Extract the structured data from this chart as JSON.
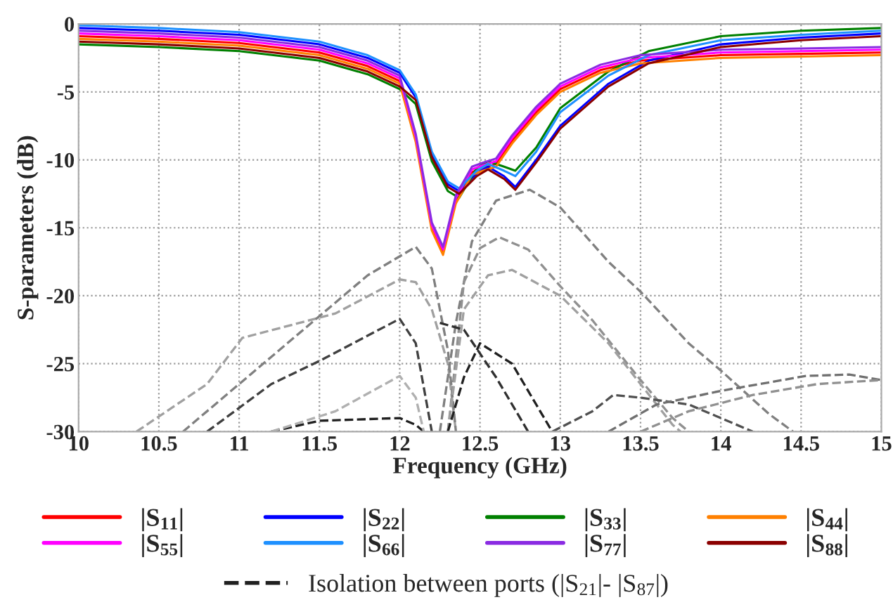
{
  "chart_data": {
    "type": "line",
    "xlabel": "Frequency (GHz)",
    "ylabel": "S-parameters (dB)",
    "xlim": [
      10,
      15
    ],
    "ylim": [
      -30,
      0
    ],
    "xticks": [
      10,
      10.5,
      11,
      11.5,
      12,
      12.5,
      13,
      13.5,
      14,
      14.5,
      15
    ],
    "yticks": [
      0,
      -5,
      -10,
      -15,
      -20,
      -25,
      -30
    ],
    "grid": true,
    "legend": "bottom",
    "line_style": "solid",
    "series": [
      {
        "name": "|S$_{11}$|",
        "color": "#ff0000",
        "x": [
          10,
          10.5,
          11,
          11.5,
          11.8,
          12.0,
          12.1,
          12.2,
          12.27,
          12.35,
          12.45,
          12.52,
          12.6,
          12.7,
          12.85,
          13.0,
          13.25,
          13.5,
          14.0,
          14.5,
          15.0
        ],
        "values": [
          -0.9,
          -1.1,
          -1.4,
          -2.1,
          -3.1,
          -4.2,
          -8.5,
          -15.0,
          -16.8,
          -13.0,
          -10.9,
          -10.6,
          -10.3,
          -8.6,
          -6.5,
          -4.8,
          -3.4,
          -2.7,
          -2.3,
          -2.2,
          -2.1
        ]
      },
      {
        "name": "|S$_{22}$|",
        "color": "#0000ff",
        "x": [
          10,
          10.5,
          11,
          11.5,
          11.8,
          12.0,
          12.1,
          12.2,
          12.3,
          12.37,
          12.48,
          12.55,
          12.65,
          12.72,
          12.85,
          13.0,
          13.3,
          13.55,
          14.0,
          14.5,
          15.0
        ],
        "values": [
          -0.3,
          -0.5,
          -0.8,
          -1.5,
          -2.5,
          -3.6,
          -5.4,
          -9.6,
          -11.8,
          -12.3,
          -11.0,
          -10.5,
          -11.2,
          -12.0,
          -10.0,
          -7.5,
          -4.4,
          -2.7,
          -1.5,
          -1.0,
          -0.7
        ]
      },
      {
        "name": "|S$_{33}$|",
        "color": "#008000",
        "x": [
          10,
          10.5,
          11,
          11.5,
          11.8,
          12.0,
          12.1,
          12.2,
          12.3,
          12.37,
          12.48,
          12.55,
          12.65,
          12.72,
          12.85,
          13.0,
          13.3,
          13.55,
          14.0,
          14.5,
          15.0
        ],
        "values": [
          -1.5,
          -1.7,
          -2.0,
          -2.7,
          -3.7,
          -4.8,
          -5.9,
          -10.1,
          -12.3,
          -12.8,
          -10.6,
          -10.1,
          -10.5,
          -10.8,
          -9.1,
          -6.2,
          -3.5,
          -2.0,
          -0.9,
          -0.5,
          -0.3
        ]
      },
      {
        "name": "|S$_{44}$|",
        "color": "#ff8000",
        "x": [
          10,
          10.5,
          11,
          11.5,
          11.8,
          12.0,
          12.1,
          12.2,
          12.27,
          12.35,
          12.45,
          12.52,
          12.6,
          12.7,
          12.85,
          13.0,
          13.25,
          13.5,
          14.0,
          14.5,
          15.0
        ],
        "values": [
          -1.1,
          -1.3,
          -1.6,
          -2.3,
          -3.3,
          -4.4,
          -8.7,
          -15.2,
          -17.0,
          -13.2,
          -11.1,
          -10.8,
          -10.5,
          -8.8,
          -6.7,
          -5.0,
          -3.6,
          -2.9,
          -2.5,
          -2.4,
          -2.3
        ]
      },
      {
        "name": "|S$_{55}$|",
        "color": "#ff00ff",
        "x": [
          10,
          10.5,
          11,
          11.5,
          11.8,
          12.0,
          12.1,
          12.2,
          12.27,
          12.35,
          12.45,
          12.52,
          12.6,
          12.7,
          12.85,
          13.0,
          13.25,
          13.5,
          14.0,
          14.5,
          15.0
        ],
        "values": [
          -0.7,
          -0.9,
          -1.2,
          -1.9,
          -2.9,
          -4.0,
          -8.3,
          -14.8,
          -16.6,
          -12.8,
          -10.7,
          -10.4,
          -10.1,
          -8.4,
          -6.3,
          -4.6,
          -3.2,
          -2.5,
          -2.1,
          -2.0,
          -1.9
        ]
      },
      {
        "name": "|S$_{66}$|",
        "color": "#1e90ff",
        "x": [
          10,
          10.5,
          11,
          11.5,
          11.8,
          12.0,
          12.1,
          12.2,
          12.3,
          12.37,
          12.48,
          12.55,
          12.65,
          12.72,
          12.85,
          13.0,
          13.3,
          13.55,
          14.0,
          14.5,
          15.0
        ],
        "values": [
          -0.1,
          -0.3,
          -0.6,
          -1.3,
          -2.3,
          -3.4,
          -5.2,
          -9.4,
          -11.6,
          -12.1,
          -10.8,
          -10.3,
          -10.8,
          -11.2,
          -9.4,
          -6.5,
          -3.8,
          -2.3,
          -1.2,
          -0.8,
          -0.5
        ]
      },
      {
        "name": "|S$_{77}$|",
        "color": "#8a2be2",
        "x": [
          10,
          10.5,
          11,
          11.5,
          11.8,
          12.0,
          12.1,
          12.2,
          12.27,
          12.35,
          12.45,
          12.52,
          12.6,
          12.7,
          12.85,
          13.0,
          13.25,
          13.5,
          14.0,
          14.5,
          15.0
        ],
        "values": [
          -0.5,
          -0.7,
          -1.0,
          -1.7,
          -2.7,
          -3.8,
          -8.1,
          -14.6,
          -16.4,
          -12.6,
          -10.5,
          -10.2,
          -9.9,
          -8.2,
          -6.1,
          -4.4,
          -3.0,
          -2.3,
          -1.9,
          -1.8,
          -1.7
        ]
      },
      {
        "name": "|S$_{88}$|",
        "color": "#8b0000",
        "x": [
          10,
          10.5,
          11,
          11.5,
          11.8,
          12.0,
          12.1,
          12.2,
          12.3,
          12.37,
          12.48,
          12.55,
          12.65,
          12.72,
          12.85,
          13.0,
          13.3,
          13.55,
          14.0,
          14.5,
          15.0
        ],
        "values": [
          -1.3,
          -1.5,
          -1.8,
          -2.5,
          -3.5,
          -4.6,
          -5.6,
          -9.8,
          -12.0,
          -12.5,
          -11.2,
          -10.7,
          -11.4,
          -12.2,
          -10.2,
          -7.7,
          -4.6,
          -2.9,
          -1.7,
          -1.2,
          -0.9
        ]
      },
      {
        "name": "Isolation between ports (|S$_{21}$|- |S$_{87}$|)",
        "color": "#202020",
        "line_style": "dashed",
        "x": [
          11.2,
          11.5,
          12.0,
          12.1,
          12.15
        ],
        "values": [
          -30,
          -29.2,
          -29.0,
          -29.5,
          -30
        ]
      },
      {
        "color": "#a0a0a0",
        "line_style": "dashed",
        "x": [
          10.36,
          10.8,
          11.02,
          11.6,
          12.0,
          12.1,
          12.2,
          12.3,
          12.35
        ],
        "values": [
          -30,
          -26.5,
          -23.1,
          -21.3,
          -18.8,
          -19.0,
          -21.0,
          -25.0,
          -30
        ]
      },
      {
        "color": "#808080",
        "line_style": "dashed",
        "x": [
          10.65,
          11.0,
          11.5,
          11.8,
          12.1,
          12.2,
          12.3,
          12.35
        ],
        "values": [
          -30,
          -26.5,
          -21.5,
          -18.5,
          -16.4,
          -18.0,
          -24.0,
          -30
        ]
      },
      {
        "color": "#404040",
        "line_style": "dashed",
        "x": [
          10.8,
          11.2,
          11.5,
          12.0,
          12.1,
          12.2
        ],
        "values": [
          -30,
          -26.5,
          -24.8,
          -21.7,
          -23.5,
          -30
        ]
      },
      {
        "color": "#b0b0b0",
        "line_style": "dashed",
        "x": [
          11.2,
          11.6,
          12.0,
          12.1,
          12.15
        ],
        "values": [
          -30,
          -28.5,
          -25.9,
          -27.5,
          -30
        ]
      },
      {
        "color": "#808080",
        "line_style": "dashed",
        "x": [
          12.25,
          12.35,
          12.45,
          12.6,
          12.81,
          13.0,
          13.3,
          13.5,
          13.8,
          14.0,
          14.3,
          14.45
        ],
        "values": [
          -30,
          -22.0,
          -16.0,
          -13.0,
          -12.2,
          -13.5,
          -17.5,
          -19.7,
          -23.5,
          -25.5,
          -28.7,
          -30
        ]
      },
      {
        "color": "#909090",
        "line_style": "dashed",
        "x": [
          12.3,
          12.4,
          12.5,
          12.62,
          12.8,
          13.0,
          13.2,
          13.5,
          13.7,
          13.8
        ],
        "values": [
          -30,
          -19.0,
          -16.5,
          -15.7,
          -16.6,
          -19.3,
          -21.8,
          -26.2,
          -29.0,
          -30
        ]
      },
      {
        "color": "#a0a0a0",
        "line_style": "dashed",
        "x": [
          12.3,
          12.4,
          12.55,
          12.7,
          13.0,
          13.3,
          13.5,
          13.7,
          13.75
        ],
        "values": [
          -30,
          -21.0,
          -18.5,
          -18.1,
          -20.0,
          -23.5,
          -26.5,
          -29.5,
          -30
        ]
      },
      {
        "color": "#202020",
        "line_style": "dashed",
        "x": [
          12.3,
          12.4,
          12.5,
          12.7,
          12.85,
          12.95
        ],
        "values": [
          -30,
          -26.0,
          -23.5,
          -25.0,
          -28.0,
          -30
        ]
      },
      {
        "color": "#303030",
        "line_style": "dashed",
        "x": [
          12.25,
          12.4,
          12.6,
          12.8
        ],
        "values": [
          -22.0,
          -22.5,
          -26.0,
          -30
        ]
      },
      {
        "color": "#505050",
        "line_style": "dashed",
        "x": [
          12.95,
          13.2,
          13.33,
          13.5,
          13.8,
          14.0,
          14.2
        ],
        "values": [
          -30,
          -28.5,
          -27.3,
          -27.5,
          -28.0,
          -29.0,
          -30
        ]
      },
      {
        "color": "#707070",
        "line_style": "dashed",
        "x": [
          13.3,
          13.6,
          14.0,
          14.53,
          14.8,
          15.0
        ],
        "values": [
          -30,
          -28.0,
          -27.0,
          -25.9,
          -25.8,
          -26.2
        ]
      },
      {
        "color": "#909090",
        "line_style": "dashed",
        "x": [
          13.5,
          13.8,
          14.2,
          14.6,
          15.0
        ],
        "values": [
          -30,
          -28.5,
          -27.3,
          -26.5,
          -26.2
        ]
      }
    ]
  }
}
